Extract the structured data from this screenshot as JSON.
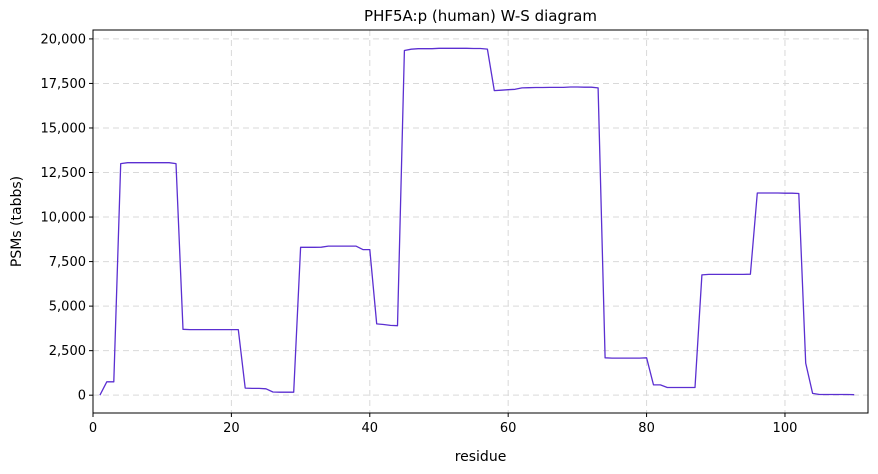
{
  "chart_data": {
    "type": "line",
    "title": "PHF5A:p (human) W-S diagram",
    "xlabel": "residue",
    "ylabel": "PSMs (tabbs)",
    "xlim": [
      0,
      112
    ],
    "ylim": [
      -1000,
      20500
    ],
    "x_ticks": [
      0,
      20,
      40,
      60,
      80,
      100
    ],
    "x_tick_labels": [
      "0",
      "20",
      "40",
      "60",
      "80",
      "100"
    ],
    "y_ticks": [
      0,
      2500,
      5000,
      7500,
      10000,
      12500,
      15000,
      17500,
      20000
    ],
    "y_tick_labels": [
      "0",
      "2,500",
      "5,000",
      "7,500",
      "10,000",
      "12,500",
      "15,000",
      "17,500",
      "20,000"
    ],
    "grid": true,
    "line_color": "#5b2fd1",
    "series": [
      {
        "x": [
          1,
          2,
          3,
          4,
          5,
          6,
          7,
          8,
          9,
          10,
          11,
          12,
          13,
          14,
          15,
          16,
          17,
          18,
          19,
          20,
          21,
          22,
          23,
          24,
          25,
          26,
          27,
          28,
          29,
          30,
          31,
          32,
          33,
          34,
          35,
          36,
          37,
          38,
          39,
          40,
          41,
          42,
          43,
          44,
          45,
          46,
          47,
          48,
          49,
          50,
          51,
          52,
          53,
          54,
          55,
          56,
          57,
          58,
          59,
          60,
          61,
          62,
          63,
          64,
          65,
          66,
          67,
          68,
          69,
          70,
          71,
          72,
          73,
          74,
          75,
          76,
          77,
          78,
          79,
          80,
          81,
          82,
          83,
          84,
          85,
          86,
          87,
          88,
          89,
          90,
          91,
          92,
          93,
          94,
          95,
          96,
          97,
          98,
          99,
          100,
          101,
          102,
          103,
          104,
          105,
          106,
          107,
          108,
          109,
          110
        ],
        "values": [
          0,
          750,
          750,
          13000,
          13050,
          13050,
          13050,
          13050,
          13050,
          13050,
          13050,
          13000,
          3700,
          3680,
          3680,
          3680,
          3680,
          3680,
          3680,
          3680,
          3680,
          400,
          380,
          380,
          360,
          180,
          170,
          170,
          170,
          8300,
          8300,
          8300,
          8310,
          8370,
          8370,
          8370,
          8370,
          8370,
          8170,
          8170,
          4000,
          3970,
          3920,
          3900,
          19350,
          19420,
          19450,
          19450,
          19450,
          19470,
          19470,
          19470,
          19470,
          19470,
          19460,
          19460,
          19430,
          17100,
          17120,
          17150,
          17170,
          17250,
          17260,
          17270,
          17270,
          17280,
          17280,
          17280,
          17300,
          17300,
          17290,
          17290,
          17250,
          2100,
          2080,
          2080,
          2080,
          2080,
          2080,
          2100,
          580,
          580,
          430,
          430,
          430,
          430,
          430,
          6750,
          6780,
          6780,
          6780,
          6780,
          6780,
          6780,
          6790,
          11350,
          11350,
          11350,
          11350,
          11340,
          11340,
          11320,
          1800,
          100,
          40,
          40,
          40,
          40,
          40,
          30
        ]
      }
    ]
  }
}
